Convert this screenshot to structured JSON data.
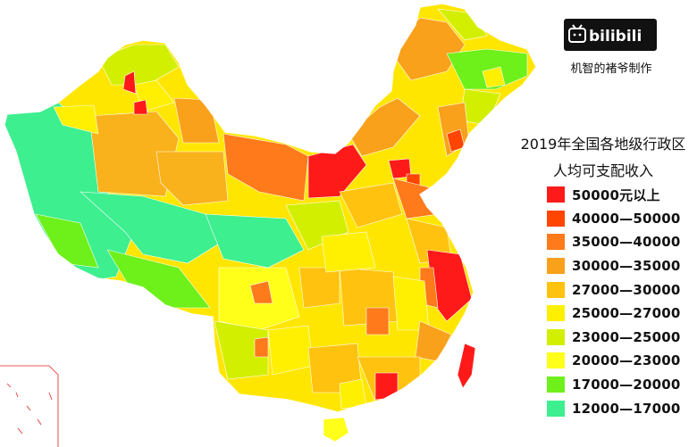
{
  "brand": {
    "logo_text": "bilibili",
    "caption": "机智的褚爷制作"
  },
  "legend": {
    "title_line1": "2019年全国各地级行政区",
    "title_line2": "人均可支配收入",
    "items": [
      {
        "label": "50000元以上",
        "color": "#ff1a1a"
      },
      {
        "label": "40000—50000",
        "color": "#ff4500"
      },
      {
        "label": "35000—40000",
        "color": "#ff7a1a"
      },
      {
        "label": "30000—35000",
        "color": "#f9a11b"
      },
      {
        "label": "27000—30000",
        "color": "#ffc20e"
      },
      {
        "label": "25000—27000",
        "color": "#ffef00"
      },
      {
        "label": "23000—25000",
        "color": "#d2ef00"
      },
      {
        "label": "20000—23000",
        "color": "#ffff1a"
      },
      {
        "label": "17000—20000",
        "color": "#6ef01a"
      },
      {
        "label": "12000—17000",
        "color": "#3def8f"
      }
    ]
  }
}
